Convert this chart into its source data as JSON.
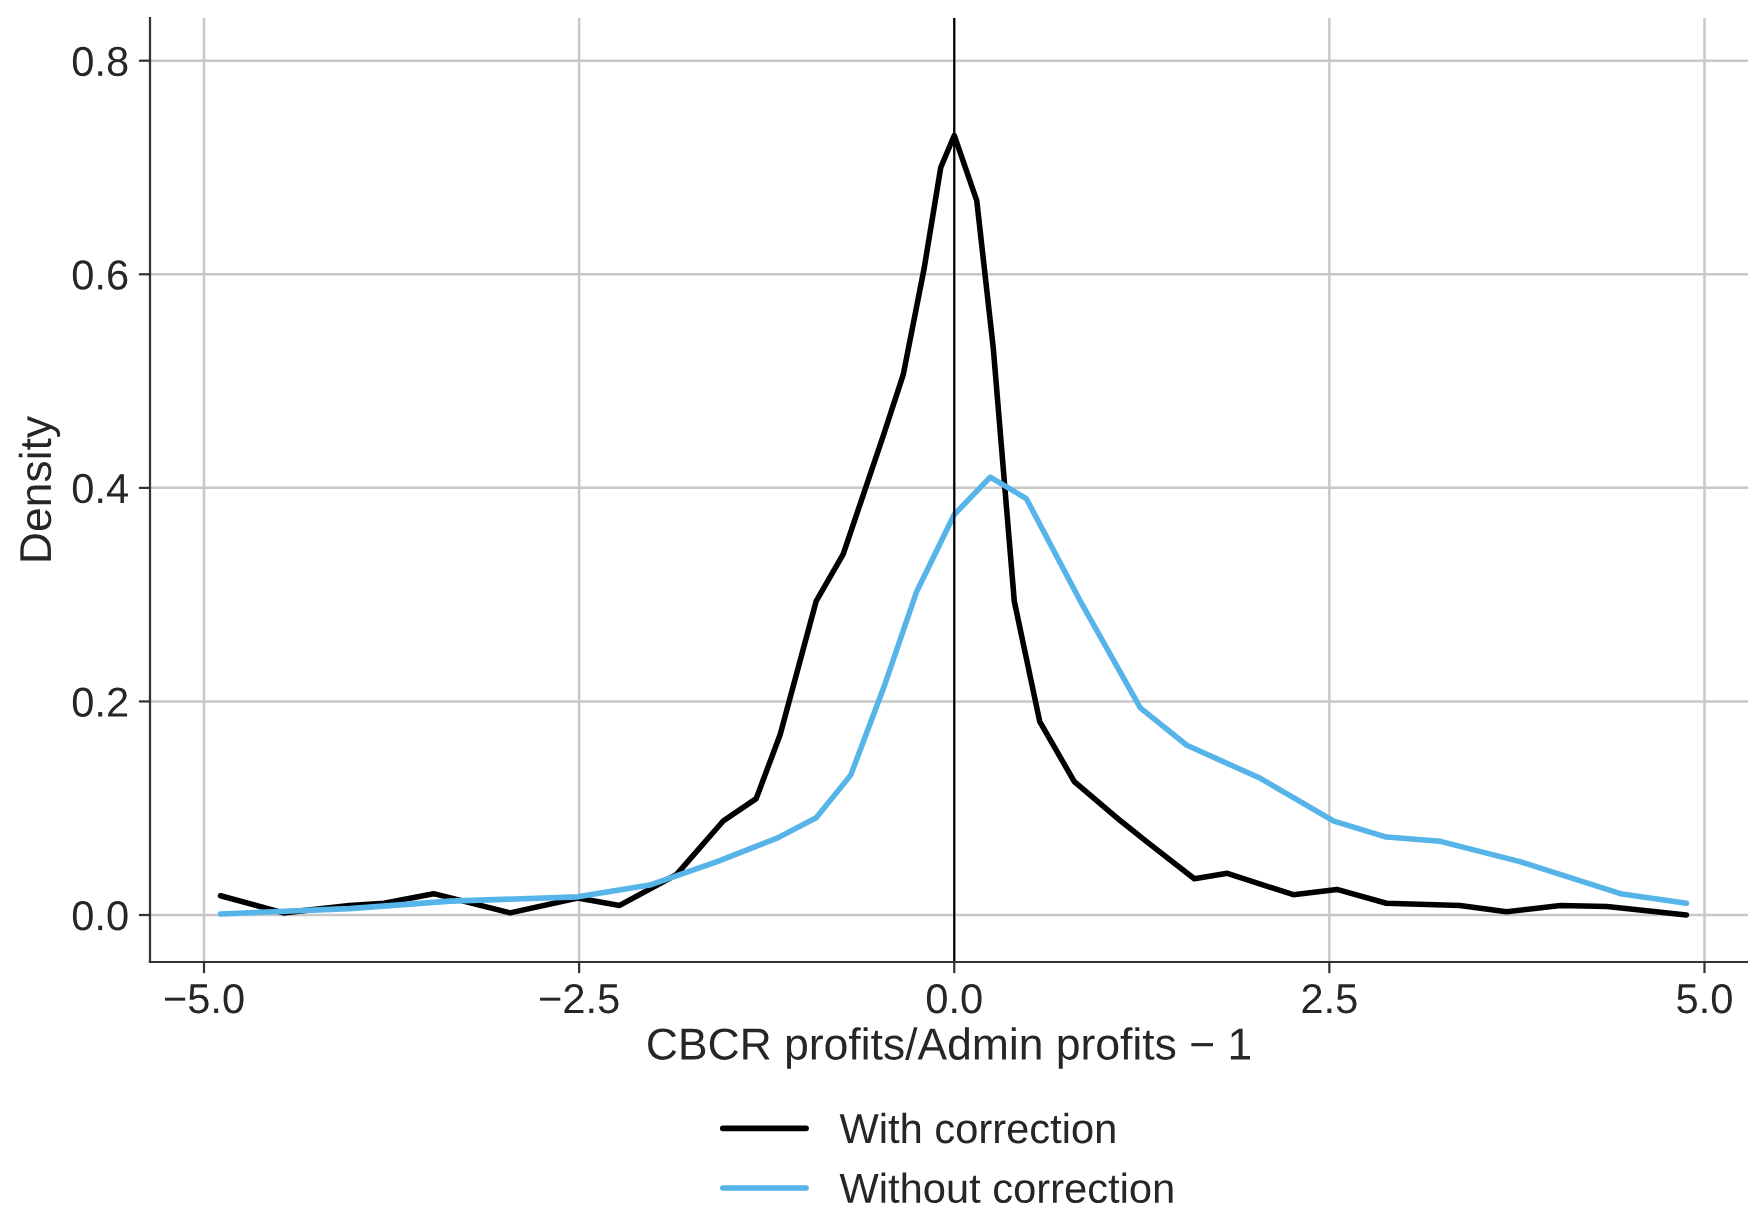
{
  "chart_data": {
    "type": "line",
    "xlabel": "CBCR profits/Admin profits − 1",
    "ylabel": "Density",
    "xlim": [
      -5.36,
      5.29
    ],
    "ylim": [
      -0.044,
      0.84
    ],
    "xticks": [
      {
        "value": -5,
        "label": "−5.0"
      },
      {
        "value": -2.5,
        "label": "−2.5"
      },
      {
        "value": 0,
        "label": "0.0"
      },
      {
        "value": 2.5,
        "label": "2.5"
      },
      {
        "value": 5,
        "label": "5.0"
      }
    ],
    "yticks": [
      {
        "value": 0,
        "label": "0.0"
      },
      {
        "value": 0.2,
        "label": "0.2"
      },
      {
        "value": 0.4,
        "label": "0.4"
      },
      {
        "value": 0.6,
        "label": "0.6"
      },
      {
        "value": 0.8,
        "label": "0.8"
      }
    ],
    "grid": true,
    "legend": "bottom",
    "line_style": "solid",
    "ref_lines": [
      {
        "axis": "x",
        "value": 0,
        "color": "#000000"
      }
    ],
    "series": [
      {
        "name": "With correction",
        "color": "#000000",
        "x": [
          -4.89,
          -4.47,
          -4.03,
          -3.8,
          -3.47,
          -2.96,
          -2.51,
          -2.23,
          -1.85,
          -1.54,
          -1.32,
          -1.16,
          -0.92,
          -0.74,
          -0.47,
          -0.34,
          -0.2,
          -0.09,
          0.0,
          0.15,
          0.26,
          0.4,
          0.57,
          0.8,
          1.11,
          1.28,
          1.6,
          1.82,
          2.26,
          2.55,
          2.88,
          3.37,
          3.68,
          4.04,
          4.35,
          4.88
        ],
        "values": [
          0.018,
          0.002,
          0.009,
          0.011,
          0.02,
          0.002,
          0.016,
          0.009,
          0.038,
          0.088,
          0.109,
          0.169,
          0.294,
          0.338,
          0.45,
          0.506,
          0.606,
          0.7,
          0.73,
          0.669,
          0.531,
          0.294,
          0.181,
          0.125,
          0.088,
          0.069,
          0.034,
          0.039,
          0.019,
          0.024,
          0.011,
          0.009,
          0.003,
          0.009,
          0.008,
          0.0
        ]
      },
      {
        "name": "Without correction",
        "color": "#56b4e9",
        "x": [
          -4.89,
          -4.03,
          -3.36,
          -2.51,
          -2.03,
          -1.58,
          -1.18,
          -0.92,
          -0.69,
          -0.47,
          -0.25,
          0.0,
          0.24,
          0.48,
          0.84,
          1.24,
          1.55,
          2.04,
          2.53,
          2.88,
          3.24,
          3.77,
          4.44,
          4.88
        ],
        "values": [
          0.001,
          0.006,
          0.013,
          0.017,
          0.028,
          0.05,
          0.072,
          0.091,
          0.131,
          0.213,
          0.303,
          0.375,
          0.41,
          0.39,
          0.294,
          0.194,
          0.159,
          0.128,
          0.088,
          0.073,
          0.069,
          0.05,
          0.02,
          0.011
        ]
      }
    ]
  }
}
